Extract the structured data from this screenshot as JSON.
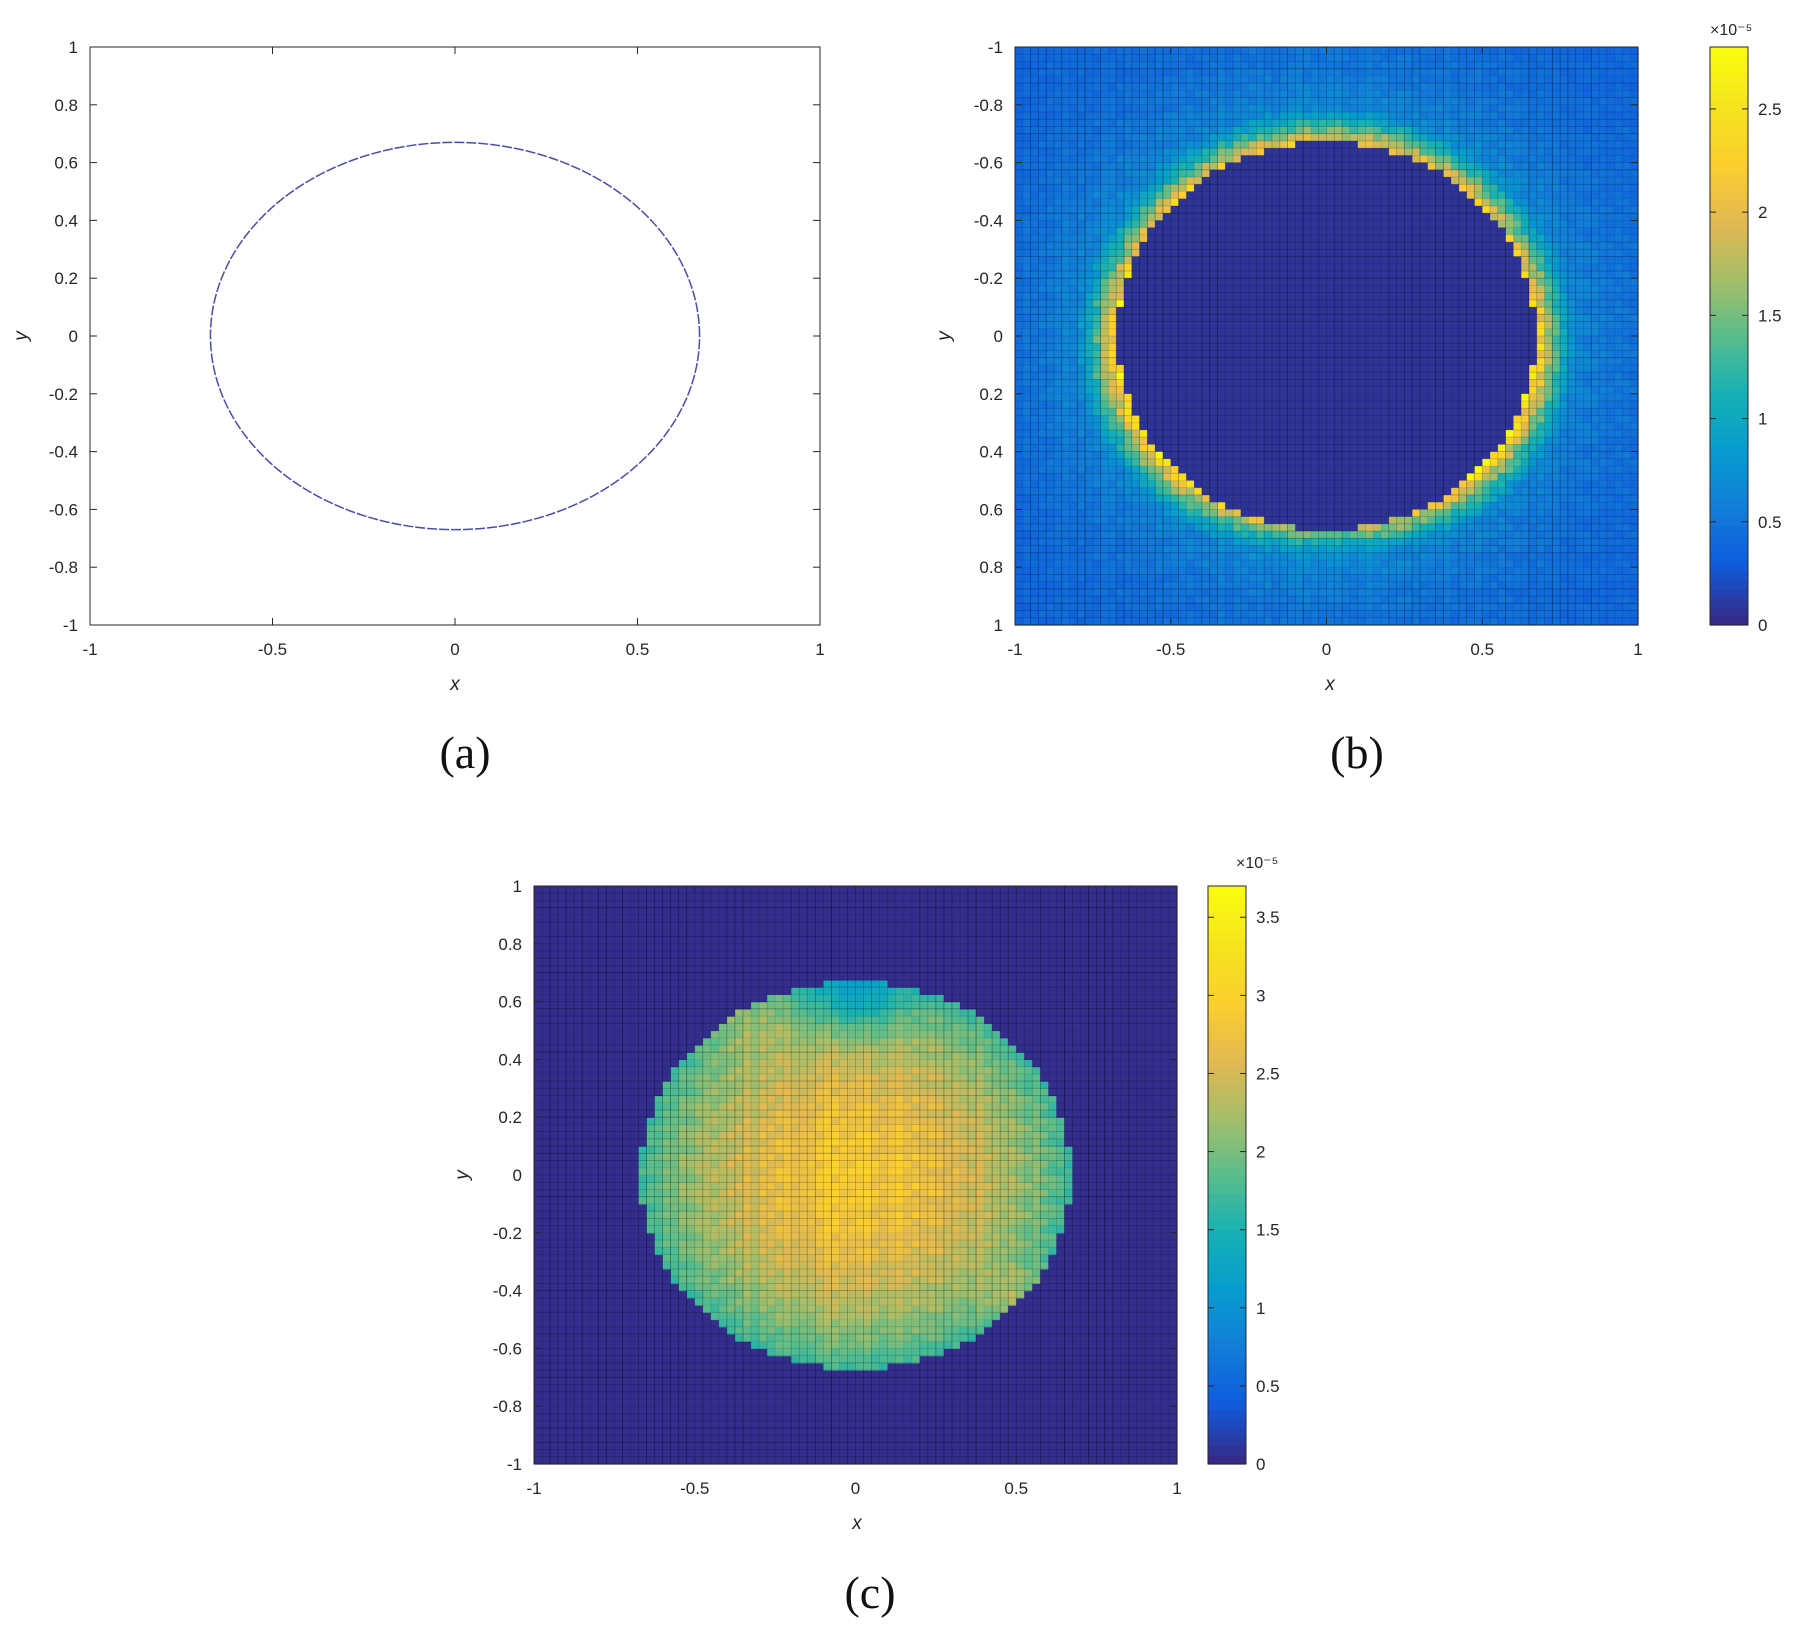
{
  "captions": [
    "(a)",
    "(b)",
    "(c)"
  ],
  "chart_data": [
    {
      "panel": "(a)",
      "type": "line",
      "xlabel": "x",
      "ylabel": "y",
      "xlim": [
        -1,
        1
      ],
      "ylim": [
        -1,
        1
      ],
      "y_direction": "normal",
      "x_ticks": [
        -1,
        -0.5,
        0,
        0.5,
        1
      ],
      "x_tick_labels": [
        "-1",
        "-0.5",
        "0",
        "0.5",
        "1"
      ],
      "y_ticks": [
        1,
        0.8,
        0.6,
        0.4,
        0.2,
        0,
        -0.2,
        -0.4,
        -0.6,
        -0.8,
        -1
      ],
      "y_tick_labels": [
        "1",
        "0.8",
        "0.6",
        "0.4",
        "0.2",
        "0",
        "-0.2",
        "-0.4",
        "-0.6",
        "-0.8",
        "-1"
      ],
      "series": [
        {
          "shape": "ellipse",
          "center": [
            0,
            0
          ],
          "semi_axes": [
            0.67,
            0.67
          ],
          "color": "#4b4ba8",
          "dashed": true
        }
      ],
      "grid": false
    },
    {
      "panel": "(b)",
      "type": "heatmap",
      "xlabel": "x",
      "ylabel": "y",
      "xlim": [
        -1,
        1
      ],
      "ylim": [
        -1,
        1
      ],
      "y_direction": "reverse",
      "x_ticks": [
        -1,
        -0.5,
        0,
        0.5,
        1
      ],
      "x_tick_labels": [
        "-1",
        "-0.5",
        "0",
        "0.5",
        "1"
      ],
      "y_ticks": [
        -1,
        -0.8,
        -0.6,
        -0.4,
        -0.2,
        0,
        0.2,
        0.4,
        0.6,
        0.8,
        1
      ],
      "y_tick_labels": [
        "-1",
        "-0.8",
        "-0.6",
        "-0.4",
        "-0.2",
        "0",
        "0.2",
        "0.4",
        "0.6",
        "0.8",
        "1"
      ],
      "grid_cells": 80,
      "colormap": "parula",
      "colorbar": {
        "clim": [
          0,
          2.8
        ],
        "ticks": [
          0,
          0.5,
          1,
          1.5,
          2,
          2.5
        ],
        "tick_labels": [
          "0",
          "0.5",
          "1",
          "1.5",
          "2",
          "2.5"
        ],
        "exponent_label": "×10⁻⁵"
      },
      "field": {
        "description": "zero inside disc, peak ring just outside the boundary, decaying outward",
        "disc_radius": 0.67,
        "peak_value": 2.6,
        "ring_width": 0.1,
        "outer_decay": 0.22,
        "background_level": 0.35
      },
      "grid": false
    },
    {
      "panel": "(c)",
      "type": "heatmap",
      "xlabel": "x",
      "ylabel": "y",
      "xlim": [
        -1,
        1
      ],
      "ylim": [
        -1,
        1
      ],
      "y_direction": "normal",
      "x_ticks": [
        -1,
        -0.5,
        0,
        0.5,
        1
      ],
      "x_tick_labels": [
        "-1",
        "-0.5",
        "0",
        "0.5",
        "1"
      ],
      "y_ticks": [
        1,
        0.8,
        0.6,
        0.4,
        0.2,
        0,
        -0.2,
        -0.4,
        -0.6,
        -0.8,
        -1
      ],
      "y_tick_labels": [
        "1",
        "0.8",
        "0.6",
        "0.4",
        "0.2",
        "0",
        "-0.2",
        "-0.4",
        "-0.6",
        "-0.8",
        "-1"
      ],
      "grid_cells": 80,
      "colormap": "parula",
      "colorbar": {
        "clim": [
          0,
          3.7
        ],
        "ticks": [
          0,
          0.5,
          1,
          1.5,
          2,
          2.5,
          3,
          3.5
        ],
        "tick_labels": [
          "0",
          "0.5",
          "1",
          "1.5",
          "2",
          "2.5",
          "3",
          "3.5"
        ],
        "exponent_label": "×10⁻⁵"
      },
      "field": {
        "description": "nonzero inside disc, maximum near center, zero outside",
        "disc_radius": 0.67,
        "center_value": 2.9,
        "edge_value": 1.7,
        "outside_value": 0
      },
      "grid": false
    }
  ]
}
